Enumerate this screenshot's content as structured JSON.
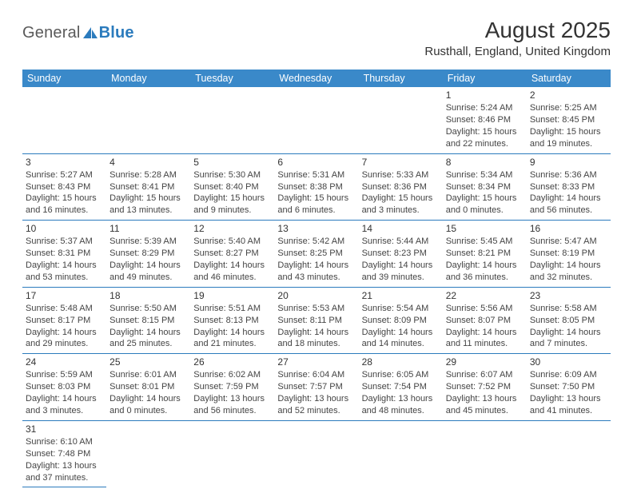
{
  "brand": {
    "text1": "General",
    "text2": "Blue"
  },
  "title": "August 2025",
  "location": "Rusthall, England, United Kingdom",
  "colors": {
    "header_bg": "#3a89c9",
    "header_text": "#ffffff",
    "border": "#2b7bbd",
    "text": "#333333"
  },
  "weekdays": [
    "Sunday",
    "Monday",
    "Tuesday",
    "Wednesday",
    "Thursday",
    "Friday",
    "Saturday"
  ],
  "days": {
    "1": {
      "sunrise": "5:24 AM",
      "sunset": "8:46 PM",
      "dlh": 15,
      "dlm": 22
    },
    "2": {
      "sunrise": "5:25 AM",
      "sunset": "8:45 PM",
      "dlh": 15,
      "dlm": 19
    },
    "3": {
      "sunrise": "5:27 AM",
      "sunset": "8:43 PM",
      "dlh": 15,
      "dlm": 16
    },
    "4": {
      "sunrise": "5:28 AM",
      "sunset": "8:41 PM",
      "dlh": 15,
      "dlm": 13
    },
    "5": {
      "sunrise": "5:30 AM",
      "sunset": "8:40 PM",
      "dlh": 15,
      "dlm": 9
    },
    "6": {
      "sunrise": "5:31 AM",
      "sunset": "8:38 PM",
      "dlh": 15,
      "dlm": 6
    },
    "7": {
      "sunrise": "5:33 AM",
      "sunset": "8:36 PM",
      "dlh": 15,
      "dlm": 3
    },
    "8": {
      "sunrise": "5:34 AM",
      "sunset": "8:34 PM",
      "dlh": 15,
      "dlm": 0
    },
    "9": {
      "sunrise": "5:36 AM",
      "sunset": "8:33 PM",
      "dlh": 14,
      "dlm": 56
    },
    "10": {
      "sunrise": "5:37 AM",
      "sunset": "8:31 PM",
      "dlh": 14,
      "dlm": 53
    },
    "11": {
      "sunrise": "5:39 AM",
      "sunset": "8:29 PM",
      "dlh": 14,
      "dlm": 49
    },
    "12": {
      "sunrise": "5:40 AM",
      "sunset": "8:27 PM",
      "dlh": 14,
      "dlm": 46
    },
    "13": {
      "sunrise": "5:42 AM",
      "sunset": "8:25 PM",
      "dlh": 14,
      "dlm": 43
    },
    "14": {
      "sunrise": "5:44 AM",
      "sunset": "8:23 PM",
      "dlh": 14,
      "dlm": 39
    },
    "15": {
      "sunrise": "5:45 AM",
      "sunset": "8:21 PM",
      "dlh": 14,
      "dlm": 36
    },
    "16": {
      "sunrise": "5:47 AM",
      "sunset": "8:19 PM",
      "dlh": 14,
      "dlm": 32
    },
    "17": {
      "sunrise": "5:48 AM",
      "sunset": "8:17 PM",
      "dlh": 14,
      "dlm": 29
    },
    "18": {
      "sunrise": "5:50 AM",
      "sunset": "8:15 PM",
      "dlh": 14,
      "dlm": 25
    },
    "19": {
      "sunrise": "5:51 AM",
      "sunset": "8:13 PM",
      "dlh": 14,
      "dlm": 21
    },
    "20": {
      "sunrise": "5:53 AM",
      "sunset": "8:11 PM",
      "dlh": 14,
      "dlm": 18
    },
    "21": {
      "sunrise": "5:54 AM",
      "sunset": "8:09 PM",
      "dlh": 14,
      "dlm": 14
    },
    "22": {
      "sunrise": "5:56 AM",
      "sunset": "8:07 PM",
      "dlh": 14,
      "dlm": 11
    },
    "23": {
      "sunrise": "5:58 AM",
      "sunset": "8:05 PM",
      "dlh": 14,
      "dlm": 7
    },
    "24": {
      "sunrise": "5:59 AM",
      "sunset": "8:03 PM",
      "dlh": 14,
      "dlm": 3
    },
    "25": {
      "sunrise": "6:01 AM",
      "sunset": "8:01 PM",
      "dlh": 14,
      "dlm": 0
    },
    "26": {
      "sunrise": "6:02 AM",
      "sunset": "7:59 PM",
      "dlh": 13,
      "dlm": 56
    },
    "27": {
      "sunrise": "6:04 AM",
      "sunset": "7:57 PM",
      "dlh": 13,
      "dlm": 52
    },
    "28": {
      "sunrise": "6:05 AM",
      "sunset": "7:54 PM",
      "dlh": 13,
      "dlm": 48
    },
    "29": {
      "sunrise": "6:07 AM",
      "sunset": "7:52 PM",
      "dlh": 13,
      "dlm": 45
    },
    "30": {
      "sunrise": "6:09 AM",
      "sunset": "7:50 PM",
      "dlh": 13,
      "dlm": 41
    },
    "31": {
      "sunrise": "6:10 AM",
      "sunset": "7:48 PM",
      "dlh": 13,
      "dlm": 37
    }
  },
  "grid": [
    [
      null,
      null,
      null,
      null,
      null,
      "1",
      "2"
    ],
    [
      "3",
      "4",
      "5",
      "6",
      "7",
      "8",
      "9"
    ],
    [
      "10",
      "11",
      "12",
      "13",
      "14",
      "15",
      "16"
    ],
    [
      "17",
      "18",
      "19",
      "20",
      "21",
      "22",
      "23"
    ],
    [
      "24",
      "25",
      "26",
      "27",
      "28",
      "29",
      "30"
    ],
    [
      "31",
      null,
      null,
      null,
      null,
      null,
      null
    ]
  ]
}
